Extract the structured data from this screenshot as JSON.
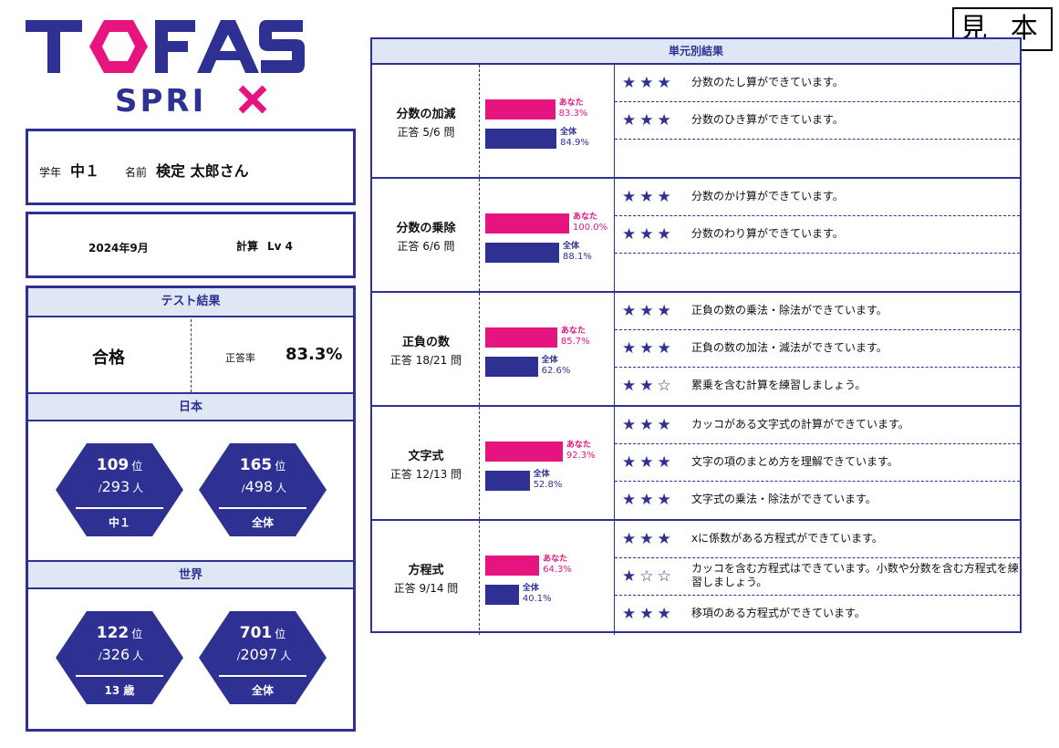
{
  "stamp": "見 本",
  "logo": {
    "primary": "TOFAS",
    "secondary": "SPRIX"
  },
  "student": {
    "grade_label": "学年",
    "grade": "中１",
    "name_label": "名前",
    "name": "検定 太郎さん"
  },
  "exam": {
    "date": "2024年9月",
    "subject": "計算",
    "level": "Lv 4"
  },
  "result": {
    "header": "テスト結果",
    "pass": "合格",
    "rate_label": "正答率",
    "rate": "83.3%"
  },
  "japan": {
    "header": "日本",
    "ranks": [
      {
        "rank": "109",
        "rank_unit": "位",
        "slash": "/",
        "total": "293",
        "total_unit": "人",
        "label": "中１"
      },
      {
        "rank": "165",
        "rank_unit": "位",
        "slash": "/",
        "total": "498",
        "total_unit": "人",
        "label": "全体"
      }
    ]
  },
  "world": {
    "header": "世界",
    "ranks": [
      {
        "rank": "122",
        "rank_unit": "位",
        "slash": "/",
        "total": "326",
        "total_unit": "人",
        "label": "13 歳"
      },
      {
        "rank": "701",
        "rank_unit": "位",
        "slash": "/",
        "total": "2097",
        "total_unit": "人",
        "label": "全体"
      }
    ]
  },
  "units": {
    "header": "単元別結果",
    "you_label": "あなた",
    "all_label": "全体",
    "items": [
      {
        "name": "分数の加減",
        "score": "正答 5/6 問",
        "you": 83.3,
        "you_text": "83.3%",
        "all": 84.9,
        "all_text": "84.9%",
        "comments": [
          {
            "stars": "★★★",
            "text": "分数のたし算ができています。"
          },
          {
            "stars": "★★★",
            "text": "分数のひき算ができています。"
          },
          {
            "stars": "",
            "text": ""
          }
        ]
      },
      {
        "name": "分数の乗除",
        "score": "正答 6/6 問",
        "you": 100.0,
        "you_text": "100.0%",
        "all": 88.1,
        "all_text": "88.1%",
        "comments": [
          {
            "stars": "★★★",
            "text": "分数のかけ算ができています。"
          },
          {
            "stars": "★★★",
            "text": "分数のわり算ができています。"
          },
          {
            "stars": "",
            "text": ""
          }
        ]
      },
      {
        "name": "正負の数",
        "score": "正答 18/21 問",
        "you": 85.7,
        "you_text": "85.7%",
        "all": 62.6,
        "all_text": "62.6%",
        "comments": [
          {
            "stars": "★★★",
            "text": "正負の数の乗法・除法ができています。"
          },
          {
            "stars": "★★★",
            "text": "正負の数の加法・減法ができています。"
          },
          {
            "stars": "★★☆",
            "text": "累乗を含む計算を練習しましょう。"
          }
        ]
      },
      {
        "name": "文字式",
        "score": "正答 12/13 問",
        "you": 92.3,
        "you_text": "92.3%",
        "all": 52.8,
        "all_text": "52.8%",
        "comments": [
          {
            "stars": "★★★",
            "text": "カッコがある文字式の計算ができています。"
          },
          {
            "stars": "★★★",
            "text": "文字の項のまとめ方を理解できています。"
          },
          {
            "stars": "★★★",
            "text": "文字式の乗法・除法ができています。"
          }
        ]
      },
      {
        "name": "方程式",
        "score": "正答 9/14 問",
        "you": 64.3,
        "you_text": "64.3%",
        "all": 40.1,
        "all_text": "40.1%",
        "comments": [
          {
            "stars": "★★★",
            "text": "xに係数がある方程式ができています。"
          },
          {
            "stars": "★☆☆",
            "text": "カッコを含む方程式はできています。小数や分数を含む方程式を練習しましょう。"
          },
          {
            "stars": "★★★",
            "text": "移項のある方程式ができています。"
          }
        ]
      }
    ]
  },
  "colors": {
    "navy": "#2e3192",
    "magenta": "#e6147f",
    "header_bg": "#dfe6f4"
  }
}
